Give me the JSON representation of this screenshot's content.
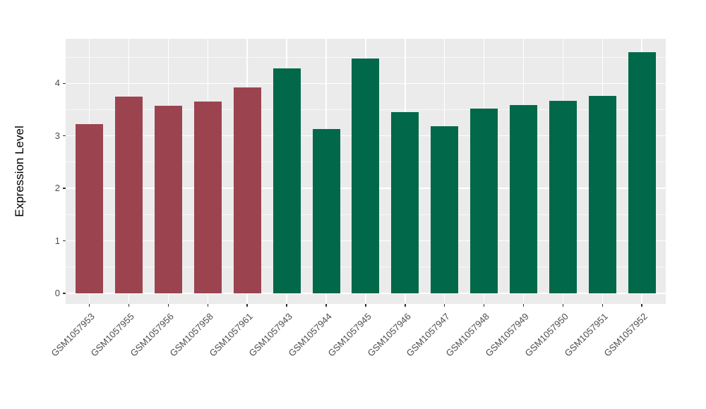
{
  "chart_data": {
    "type": "bar",
    "title": "",
    "xlabel": "",
    "ylabel": "Expression Level",
    "categories": [
      "GSM1057953",
      "GSM1057955",
      "GSM1057956",
      "GSM1057958",
      "GSM1057961",
      "GSM1057943",
      "GSM1057944",
      "GSM1057945",
      "GSM1057946",
      "GSM1057947",
      "GSM1057948",
      "GSM1057949",
      "GSM1057950",
      "GSM1057951",
      "GSM1057952"
    ],
    "values": [
      3.22,
      3.75,
      3.58,
      3.66,
      3.92,
      4.28,
      3.13,
      4.47,
      3.45,
      3.19,
      3.52,
      3.59,
      3.67,
      3.76,
      4.59
    ],
    "bar_colors": [
      "#9B4450",
      "#9B4450",
      "#9B4450",
      "#9B4450",
      "#9B4450",
      "#01684A",
      "#01684A",
      "#01684A",
      "#01684A",
      "#01684A",
      "#01684A",
      "#01684A",
      "#01684A",
      "#01684A",
      "#01684A"
    ],
    "yticks": [
      "0",
      "1",
      "2",
      "3",
      "4"
    ],
    "ylim": [
      0,
      4.85
    ],
    "grid": "white major and minor horizontal lines, white vertical lines at bar centers",
    "legend": "none"
  },
  "style_colors": {
    "figure_background": "#FFFFFF",
    "panel_background": "#EBEBEB",
    "major_gridline": "#FFFFFF",
    "minor_gridline": "#F8F8F8",
    "axis_text": "#4D4D4D",
    "axis_title": "#000000",
    "tick_mark": "#333333"
  }
}
